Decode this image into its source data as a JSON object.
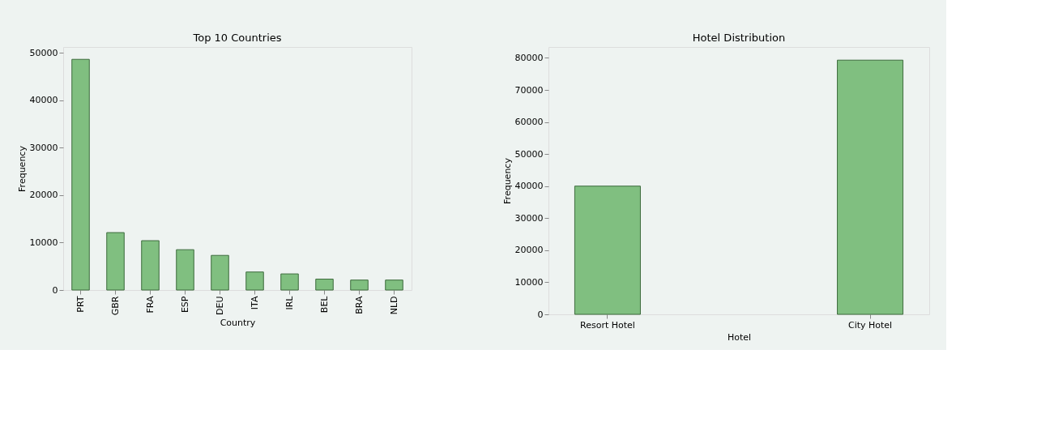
{
  "chart_data": [
    {
      "type": "bar",
      "title": "Top 10 Countries",
      "xlabel": "Country",
      "ylabel": "Frequency",
      "categories": [
        "PRT",
        "GBR",
        "FRA",
        "ESP",
        "DEU",
        "ITA",
        "IRL",
        "BEL",
        "BRA",
        "NLD"
      ],
      "values": [
        48600,
        12100,
        10400,
        8500,
        7300,
        3800,
        3400,
        2300,
        2100,
        2100
      ],
      "color": "#80bf80",
      "ylim": [
        0,
        51200
      ],
      "yticks": [
        0,
        10000,
        20000,
        30000,
        40000,
        50000
      ],
      "grid": false
    },
    {
      "type": "bar",
      "title": "Hotel Distribution",
      "xlabel": "Hotel",
      "ylabel": "Frequency",
      "categories": [
        "Resort Hotel",
        "City Hotel"
      ],
      "values": [
        40000,
        79300
      ],
      "color": "#80bf80",
      "ylim": [
        0,
        83400
      ],
      "yticks": [
        0,
        10000,
        20000,
        30000,
        40000,
        50000,
        60000,
        70000,
        80000
      ],
      "grid": false
    }
  ]
}
